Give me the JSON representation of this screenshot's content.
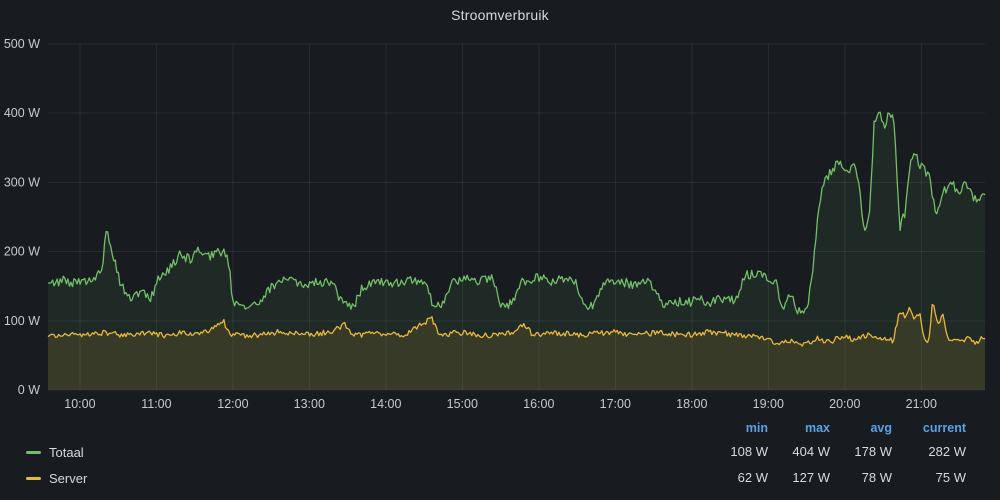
{
  "colors": {
    "bg": "#181b1f",
    "text": "#d8d9da",
    "text_dim": "#c8c9cd",
    "header_blue": "#56a2e8",
    "grid": "rgba(204,204,220,0.09)"
  },
  "legend": {
    "columns": [
      "min",
      "max",
      "avg",
      "current"
    ]
  },
  "chart_data": {
    "type": "line",
    "title": "Stroomverbruik",
    "xlabel": "",
    "ylabel": "",
    "grid": true,
    "legend_position": "bottom",
    "x_range_minutes": [
      575,
      1310
    ],
    "ylim": [
      0,
      500
    ],
    "yticks": [
      {
        "value": 0,
        "label": "0 W"
      },
      {
        "value": 100,
        "label": "100 W"
      },
      {
        "value": 200,
        "label": "200 W"
      },
      {
        "value": 300,
        "label": "300 W"
      },
      {
        "value": 400,
        "label": "400 W"
      },
      {
        "value": 500,
        "label": "500 W"
      }
    ],
    "xticks": [
      {
        "value": 600,
        "label": "10:00"
      },
      {
        "value": 660,
        "label": "11:00"
      },
      {
        "value": 720,
        "label": "12:00"
      },
      {
        "value": 780,
        "label": "13:00"
      },
      {
        "value": 840,
        "label": "14:00"
      },
      {
        "value": 900,
        "label": "15:00"
      },
      {
        "value": 960,
        "label": "16:00"
      },
      {
        "value": 1020,
        "label": "17:00"
      },
      {
        "value": 1080,
        "label": "18:00"
      },
      {
        "value": 1140,
        "label": "19:00"
      },
      {
        "value": 1200,
        "label": "20:00"
      },
      {
        "value": 1260,
        "label": "21:00"
      }
    ],
    "series": [
      {
        "name": "Totaal",
        "color": "#73BF69",
        "fill_opacity": 0.09,
        "jitter": 7,
        "stats": {
          "min": "108 W",
          "max": "404 W",
          "avg": "178 W",
          "current": "282 W"
        },
        "points": [
          [
            575,
            152
          ],
          [
            588,
            158
          ],
          [
            600,
            154
          ],
          [
            610,
            163
          ],
          [
            617,
            172
          ],
          [
            621,
            232
          ],
          [
            626,
            198
          ],
          [
            632,
            152
          ],
          [
            638,
            133
          ],
          [
            648,
            139
          ],
          [
            656,
            134
          ],
          [
            661,
            158
          ],
          [
            670,
            176
          ],
          [
            679,
            198
          ],
          [
            687,
            186
          ],
          [
            694,
            204
          ],
          [
            701,
            192
          ],
          [
            709,
            200
          ],
          [
            716,
            196
          ],
          [
            720,
            128
          ],
          [
            729,
            122
          ],
          [
            741,
            127
          ],
          [
            751,
            150
          ],
          [
            762,
            158
          ],
          [
            774,
            153
          ],
          [
            787,
            158
          ],
          [
            799,
            151
          ],
          [
            807,
            121
          ],
          [
            816,
            125
          ],
          [
            822,
            150
          ],
          [
            834,
            158
          ],
          [
            847,
            153
          ],
          [
            859,
            160
          ],
          [
            871,
            155
          ],
          [
            877,
            122
          ],
          [
            885,
            126
          ],
          [
            891,
            154
          ],
          [
            904,
            162
          ],
          [
            914,
            158
          ],
          [
            924,
            162
          ],
          [
            931,
            121
          ],
          [
            939,
            125
          ],
          [
            946,
            154
          ],
          [
            957,
            163
          ],
          [
            969,
            158
          ],
          [
            981,
            162
          ],
          [
            989,
            154
          ],
          [
            995,
            122
          ],
          [
            1003,
            119
          ],
          [
            1009,
            151
          ],
          [
            1021,
            158
          ],
          [
            1034,
            153
          ],
          [
            1047,
            158
          ],
          [
            1057,
            124
          ],
          [
            1067,
            129
          ],
          [
            1075,
            125
          ],
          [
            1085,
            131
          ],
          [
            1094,
            127
          ],
          [
            1104,
            133
          ],
          [
            1114,
            128
          ],
          [
            1121,
            164
          ],
          [
            1131,
            170
          ],
          [
            1141,
            162
          ],
          [
            1147,
            154
          ],
          [
            1151,
            114
          ],
          [
            1157,
            139
          ],
          [
            1162,
            117
          ],
          [
            1167,
            108
          ],
          [
            1171,
            124
          ],
          [
            1175,
            178
          ],
          [
            1179,
            252
          ],
          [
            1183,
            298
          ],
          [
            1189,
            314
          ],
          [
            1195,
            330
          ],
          [
            1201,
            312
          ],
          [
            1207,
            322
          ],
          [
            1211,
            300
          ],
          [
            1215,
            236
          ],
          [
            1219,
            242
          ],
          [
            1223,
            384
          ],
          [
            1227,
            400
          ],
          [
            1231,
            376
          ],
          [
            1235,
            404
          ],
          [
            1239,
            382
          ],
          [
            1243,
            232
          ],
          [
            1247,
            256
          ],
          [
            1251,
            328
          ],
          [
            1255,
            340
          ],
          [
            1261,
            320
          ],
          [
            1267,
            306
          ],
          [
            1271,
            252
          ],
          [
            1277,
            286
          ],
          [
            1283,
            300
          ],
          [
            1289,
            286
          ],
          [
            1295,
            296
          ],
          [
            1301,
            276
          ],
          [
            1308,
            282
          ]
        ]
      },
      {
        "name": "Server",
        "color": "#EAB839",
        "fill_opacity": 0.12,
        "jitter": 4,
        "stats": {
          "min": "62 W",
          "max": "127 W",
          "avg": "78 W",
          "current": "75 W"
        },
        "points": [
          [
            575,
            78
          ],
          [
            595,
            80
          ],
          [
            615,
            83
          ],
          [
            635,
            79
          ],
          [
            655,
            82
          ],
          [
            668,
            78
          ],
          [
            680,
            84
          ],
          [
            695,
            80
          ],
          [
            713,
            98
          ],
          [
            718,
            80
          ],
          [
            735,
            78
          ],
          [
            755,
            84
          ],
          [
            775,
            80
          ],
          [
            795,
            83
          ],
          [
            808,
            94
          ],
          [
            815,
            79
          ],
          [
            835,
            82
          ],
          [
            855,
            79
          ],
          [
            876,
            104
          ],
          [
            882,
            80
          ],
          [
            900,
            83
          ],
          [
            920,
            79
          ],
          [
            940,
            82
          ],
          [
            948,
            96
          ],
          [
            955,
            80
          ],
          [
            975,
            82
          ],
          [
            995,
            79
          ],
          [
            1015,
            84
          ],
          [
            1035,
            80
          ],
          [
            1055,
            83
          ],
          [
            1075,
            79
          ],
          [
            1095,
            84
          ],
          [
            1115,
            80
          ],
          [
            1135,
            75
          ],
          [
            1148,
            68
          ],
          [
            1158,
            71
          ],
          [
            1168,
            66
          ],
          [
            1178,
            74
          ],
          [
            1188,
            70
          ],
          [
            1198,
            77
          ],
          [
            1208,
            72
          ],
          [
            1218,
            79
          ],
          [
            1228,
            74
          ],
          [
            1238,
            71
          ],
          [
            1243,
            112
          ],
          [
            1247,
            108
          ],
          [
            1251,
            118
          ],
          [
            1255,
            102
          ],
          [
            1259,
            114
          ],
          [
            1262,
            70
          ],
          [
            1266,
            73
          ],
          [
            1269,
            127
          ],
          [
            1273,
            96
          ],
          [
            1277,
            110
          ],
          [
            1281,
            72
          ],
          [
            1289,
            70
          ],
          [
            1296,
            75
          ],
          [
            1302,
            68
          ],
          [
            1308,
            75
          ]
        ]
      }
    ]
  }
}
